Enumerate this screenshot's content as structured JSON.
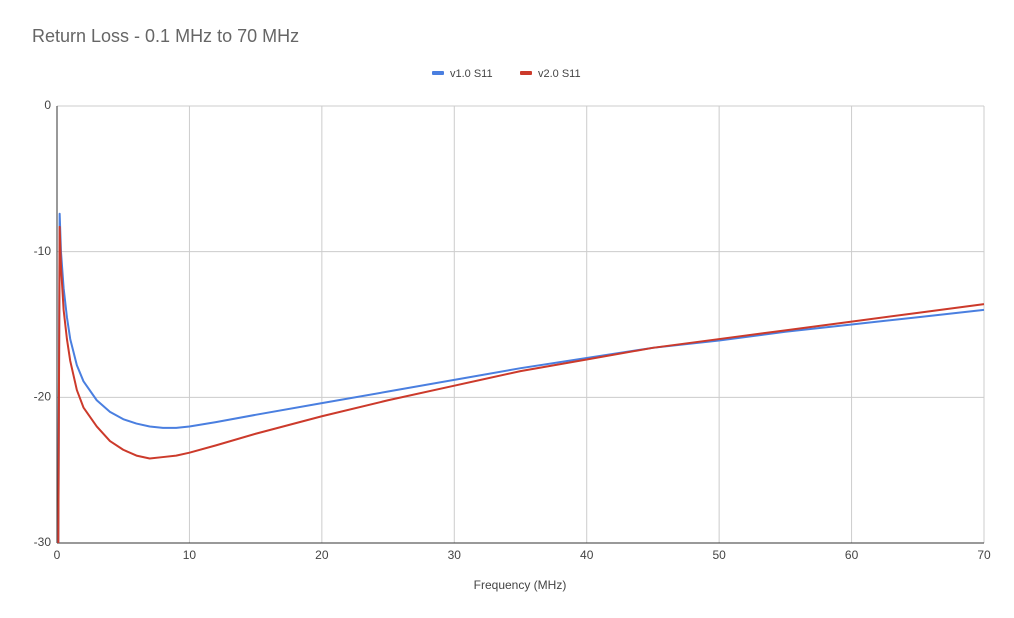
{
  "chart_data": {
    "type": "line",
    "title": "Return Loss - 0.1 MHz to 70 MHz",
    "x_label": "Frequency (MHz)",
    "x": [
      0.1,
      0.2,
      0.3,
      0.5,
      0.75,
      1,
      1.5,
      2,
      3,
      4,
      5,
      6,
      7,
      8,
      9,
      10,
      12,
      15,
      20,
      25,
      30,
      35,
      40,
      45,
      50,
      55,
      60,
      65,
      70
    ],
    "series": [
      {
        "name": "v1.0 S11",
        "color": "#4a7fe0",
        "values": [
          -30,
          -7.4,
          -10,
          -12.5,
          -14.5,
          -16,
          -17.8,
          -18.9,
          -20.2,
          -21,
          -21.5,
          -21.8,
          -22,
          -22.1,
          -22.1,
          -22,
          -21.7,
          -21.2,
          -20.4,
          -19.6,
          -18.8,
          -18,
          -17.3,
          -16.6,
          -16.1,
          -15.5,
          -15,
          -14.5,
          -14
        ]
      },
      {
        "name": "v2.0 S11",
        "color": "#cc3a2b",
        "values": [
          -30,
          -8.3,
          -11,
          -14,
          -16,
          -17.5,
          -19.5,
          -20.7,
          -22,
          -23,
          -23.6,
          -24,
          -24.2,
          -24.1,
          -24,
          -23.8,
          -23.3,
          -22.5,
          -21.3,
          -20.2,
          -19.2,
          -18.2,
          -17.4,
          -16.6,
          -16,
          -15.4,
          -14.8,
          -14.2,
          -13.6
        ]
      }
    ],
    "xlim": [
      0,
      70
    ],
    "xticks": [
      0,
      10,
      20,
      30,
      40,
      50,
      60,
      70
    ],
    "ylim": [
      -30,
      0
    ],
    "yticks": [
      0,
      -10,
      -20,
      -30
    ],
    "grid": true,
    "legend": "top"
  }
}
